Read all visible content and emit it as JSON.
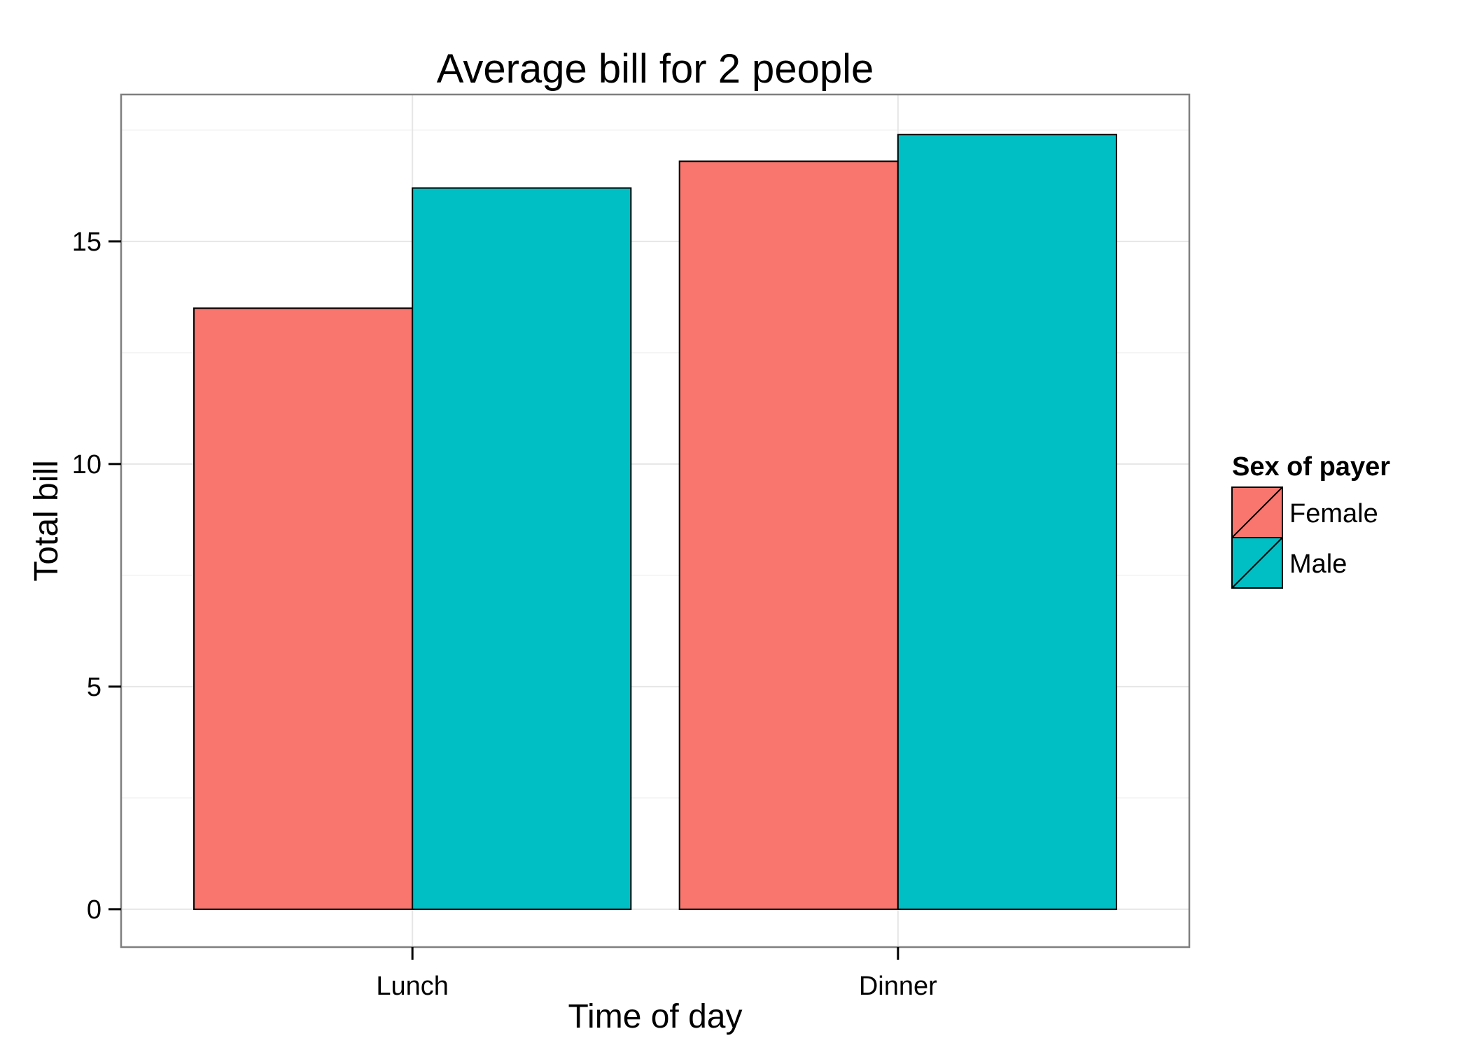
{
  "chart_data": {
    "type": "bar",
    "title": "Average bill for 2 people",
    "xlabel": "Time of day",
    "ylabel": "Total bill",
    "categories": [
      "Lunch",
      "Dinner"
    ],
    "series": [
      {
        "name": "Female",
        "values": [
          13.5,
          16.8
        ],
        "color": "#F8766D"
      },
      {
        "name": "Male",
        "values": [
          16.2,
          17.4
        ],
        "color": "#00BFC4"
      }
    ],
    "ylim": [
      -0.85,
      18.3
    ],
    "yticks": [
      0,
      5,
      10,
      15
    ],
    "ytick_labels": [
      "0",
      "5",
      "10",
      "15"
    ],
    "grid": true,
    "legend": {
      "title": "Sex of payer",
      "placement": "right"
    }
  }
}
